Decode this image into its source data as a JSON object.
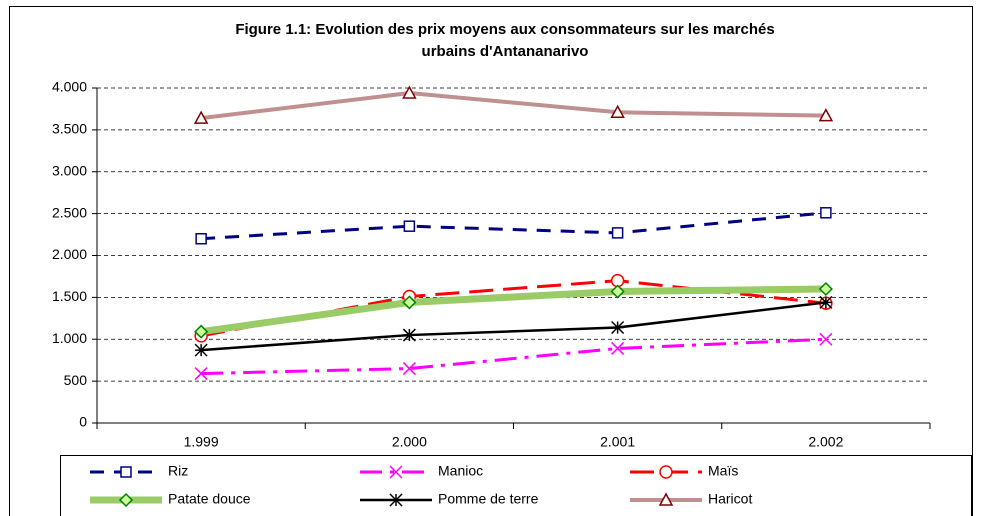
{
  "chart_data": {
    "type": "line",
    "title": "Figure 1.1: Evolution des prix moyens aux consommateurs sur les marchés",
    "subtitle": "urbains d'Antananarivo",
    "categories": [
      "1.999",
      "2.000",
      "2.001",
      "2.002"
    ],
    "ylim": [
      0,
      4000
    ],
    "yticks": [
      0,
      500,
      {
        "value": 1000,
        "label": "1.000"
      },
      {
        "value": 1500,
        "label": "1.500"
      },
      {
        "value": 2000,
        "label": "2.000"
      },
      {
        "value": 2500,
        "label": "2.500"
      },
      {
        "value": 3000,
        "label": "3.000"
      },
      {
        "value": 3500,
        "label": "3.500"
      },
      {
        "value": 4000,
        "label": "4.000"
      }
    ],
    "grid": true,
    "series": [
      {
        "name": "Riz",
        "color": "#000080",
        "marker": "square",
        "dash": "14 10",
        "width": 3,
        "values": [
          2200,
          2350,
          2270,
          2510
        ]
      },
      {
        "name": "Manioc",
        "color": "#ff00ff",
        "marker": "x",
        "dash": "22 8 4 8",
        "width": 3,
        "values": [
          590,
          650,
          890,
          1000
        ]
      },
      {
        "name": "Maïs",
        "color": "#ff0000",
        "marker": "circle",
        "dash": "24 10",
        "width": 3,
        "values": [
          1040,
          1510,
          1700,
          1430
        ]
      },
      {
        "name": "Patate douce",
        "color": "#99cc66",
        "marker_color": "#008000",
        "marker": "diamond",
        "dash": "none",
        "width": 7,
        "values": [
          1090,
          1440,
          1570,
          1600
        ]
      },
      {
        "name": "Pomme de terre",
        "color": "#000000",
        "marker": "asterisk",
        "dash": "none",
        "width": 2.5,
        "values": [
          870,
          1050,
          1140,
          1440
        ]
      },
      {
        "name": "Haricot",
        "color": "#c09090",
        "marker_color": "#800000",
        "marker": "triangle",
        "dash": "none",
        "width": 4,
        "values": [
          3640,
          3940,
          3710,
          3670
        ]
      }
    ]
  }
}
